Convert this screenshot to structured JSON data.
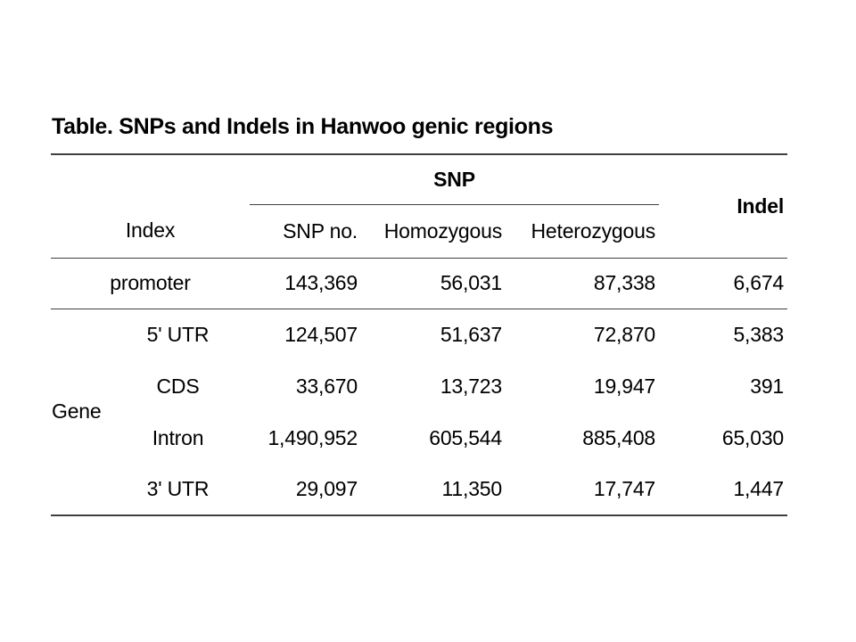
{
  "page": {
    "title": "Table. SNPs and Indels in Hanwoo genic regions"
  },
  "table": {
    "header": {
      "index_label": "Index",
      "snp_group_label": "SNP",
      "indel_label": "Indel",
      "snp_columns": [
        "SNP no.",
        "Homozygous",
        "Heterozygous"
      ]
    },
    "gene_group_label": "Gene",
    "rows": [
      {
        "region": "promoter",
        "snp_no": "143,369",
        "homozygous": "56,031",
        "heterozygous": "87,338",
        "indel": "6,674"
      },
      {
        "region": "5' UTR",
        "snp_no": "124,507",
        "homozygous": "51,637",
        "heterozygous": "72,870",
        "indel": "5,383"
      },
      {
        "region": "CDS",
        "snp_no": "33,670",
        "homozygous": "13,723",
        "heterozygous": "19,947",
        "indel": "391"
      },
      {
        "region": "Intron",
        "snp_no": "1,490,952",
        "homozygous": "605,544",
        "heterozygous": "885,408",
        "indel": "65,030"
      },
      {
        "region": "3' UTR",
        "snp_no": "29,097",
        "homozygous": "11,350",
        "heterozygous": "17,747",
        "indel": "1,447"
      }
    ],
    "colors": {
      "text": "#000000",
      "rule": "#3f3f3f",
      "background": "#ffffff"
    }
  },
  "chart_data": {
    "type": "table",
    "title": "Table. SNPs and Indels in Hanwoo genic regions",
    "columns": [
      "Index group",
      "Index",
      "SNP no.",
      "Homozygous",
      "Heterozygous",
      "Indel"
    ],
    "rows": [
      [
        "",
        "promoter",
        143369,
        56031,
        87338,
        6674
      ],
      [
        "Gene",
        "5' UTR",
        124507,
        51637,
        72870,
        5383
      ],
      [
        "Gene",
        "CDS",
        33670,
        13723,
        19947,
        391
      ],
      [
        "Gene",
        "Intron",
        1490952,
        605544,
        885408,
        65030
      ],
      [
        "Gene",
        "3' UTR",
        29097,
        11350,
        17747,
        1447
      ]
    ]
  }
}
